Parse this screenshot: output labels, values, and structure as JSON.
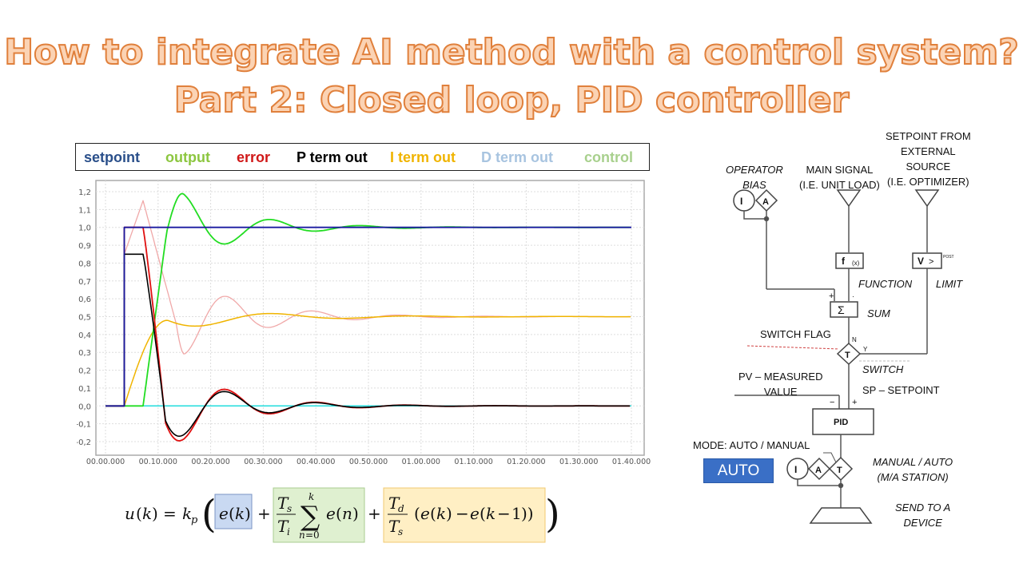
{
  "title": {
    "line1": "How to integrate AI method with a control system?",
    "line2": "Part 2: Closed loop, PID controller"
  },
  "legend": [
    {
      "label": "setpoint",
      "color": "#2a4f8a"
    },
    {
      "label": "output",
      "color": "#8cc63f"
    },
    {
      "label": "error",
      "color": "#d01818"
    },
    {
      "label": "P term  out",
      "color": "#000000"
    },
    {
      "label": "I term out",
      "color": "#f0b400"
    },
    {
      "label": "D term  out",
      "color": "#a8c4e0"
    },
    {
      "label": "control",
      "color": "#a8d08d"
    }
  ],
  "chart_data": {
    "type": "line",
    "title": "",
    "xlabel": "",
    "ylabel": "",
    "x_ticks": [
      "00.00.000",
      "00.10.000",
      "00.20.000",
      "00.30.000",
      "00.40.000",
      "00.50.000",
      "01.00.000",
      "01.10.000",
      "01.20.000",
      "01.30.000",
      "01.40.000"
    ],
    "y_ticks": [
      "1,2",
      "1,1",
      "1,0",
      "0,9",
      "0,8",
      "0,7",
      "0,6",
      "0,5",
      "0,4",
      "0,3",
      "0,2",
      "0,1",
      "0,0",
      "-0,1",
      "-0,2"
    ],
    "ylim": [
      -0.25,
      1.25
    ],
    "grid": true,
    "series": [
      {
        "name": "setpoint",
        "color": "#1a1aa0",
        "x": [
          0,
          0.05,
          0.05,
          1.4
        ],
        "values": [
          0,
          0,
          1.0,
          1.0
        ]
      },
      {
        "name": "output",
        "color": "#22dd22",
        "x": [
          0,
          0.1,
          0.2,
          0.32,
          0.45,
          0.55,
          0.65,
          1.4
        ],
        "values": [
          0,
          0,
          1.19,
          0.87,
          1.01,
          0.98,
          1.0,
          1.0
        ]
      },
      {
        "name": "error",
        "color": "#e01010",
        "x": [
          0,
          0.05,
          0.1,
          0.2,
          0.32,
          0.44,
          0.55,
          0.7,
          1.4
        ],
        "values": [
          0,
          1.0,
          1.0,
          -0.19,
          0.13,
          -0.01,
          0.02,
          0.0,
          0.0
        ]
      },
      {
        "name": "P term out",
        "color": "#000000",
        "x": [
          0,
          0.05,
          0.1,
          0.2,
          0.32,
          0.44,
          0.55,
          0.7,
          1.4
        ],
        "values": [
          0,
          0.85,
          0.85,
          -0.16,
          0.11,
          -0.01,
          0.02,
          0.0,
          0.0
        ]
      },
      {
        "name": "I term out",
        "color": "#f0b400",
        "x": [
          0,
          0.05,
          0.165,
          0.26,
          0.4,
          0.6,
          1.4
        ],
        "values": [
          0,
          0,
          0.48,
          0.42,
          0.48,
          0.5,
          0.5
        ]
      },
      {
        "name": "D term out",
        "color": "#22dddd",
        "x": [
          0,
          1.4
        ],
        "values": [
          0,
          0
        ]
      },
      {
        "name": "control",
        "color": "#f0a8a8",
        "x": [
          0.05,
          0.1,
          0.21,
          0.32,
          0.45,
          0.55,
          1.4
        ],
        "values": [
          0.85,
          1.15,
          0.29,
          0.55,
          0.48,
          0.5,
          0.5
        ]
      }
    ]
  },
  "formula": {
    "lhs": "u(k) = k",
    "p_term": "e(k)",
    "i_term": "Ts/Ti Σ(n=0..k) e(n)",
    "d_term": "Td/Ts (e(k) − e(k−1))",
    "p_color": "#c9d9f2",
    "i_color": "#dff0d0",
    "d_color": "#ffefc4"
  },
  "diagram": {
    "operator_bias": "OPERATOR\nBIAS",
    "main_signal": "MAIN SIGNAL\n(I.E. UNIT LOAD)",
    "setpoint_ext": "SETPOINT FROM\nEXTERNAL\nSOURCE\n(I.E. OPTIMIZER)",
    "function": "FUNCTION",
    "limit": "LIMIT",
    "sum": "SUM",
    "switch_flag": "SWITCH FLAG",
    "switch": "SWITCH",
    "pv": "PV – MEASURED\nVALUE",
    "sp": "SP – SETPOINT",
    "pid": "PID",
    "mode": "MODE: AUTO / MANUAL",
    "ma_station": "MANUAL / AUTO\n(M/A STATION)",
    "send": "SEND TO A\nDEVICE",
    "auto_button": "AUTO",
    "block_i": "I",
    "block_a": "A",
    "block_t": "T",
    "block_f": "f",
    "block_v": "V",
    "sigma": "Σ",
    "n": "N",
    "y": "Y",
    "plus": "+",
    "minus": "−"
  }
}
